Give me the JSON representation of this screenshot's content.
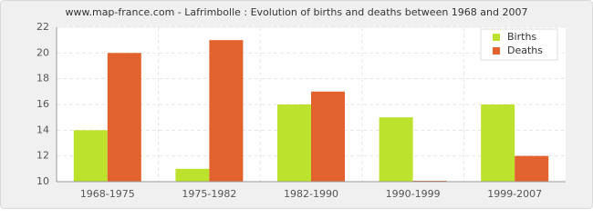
{
  "chart_data": {
    "type": "bar",
    "title": "www.map-france.com - Lafrimbolle : Evolution of births and deaths between 1968 and 2007",
    "categories": [
      "1968-1975",
      "1975-1982",
      "1982-1990",
      "1990-1999",
      "1999-2007"
    ],
    "series": [
      {
        "name": "Births",
        "color": "#bde22d",
        "values": [
          14,
          11,
          16,
          15,
          16
        ]
      },
      {
        "name": "Deaths",
        "color": "#e2622d",
        "values": [
          20,
          21,
          17,
          10,
          12
        ]
      }
    ],
    "ylim": [
      10,
      22
    ],
    "yticks": [
      10,
      12,
      14,
      16,
      18,
      20,
      22
    ],
    "grid": true,
    "legend": "top-right"
  }
}
